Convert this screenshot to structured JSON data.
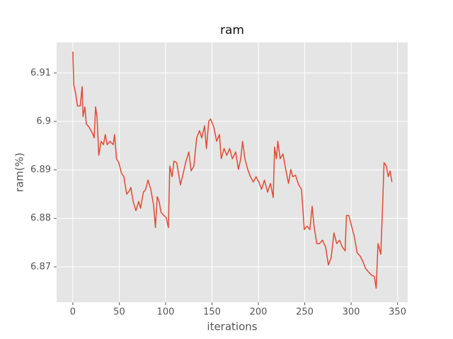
{
  "chart_data": {
    "type": "line",
    "title": "ram",
    "xlabel": "iterations",
    "ylabel": "ram(%)",
    "color": "#e24a33",
    "grid": true,
    "xlim": [
      -17.5,
      361
    ],
    "ylim": [
      6.8627,
      6.9163
    ],
    "xticks": [
      0,
      50,
      100,
      150,
      200,
      250,
      300,
      350
    ],
    "yticks": [
      6.87,
      6.88,
      6.89,
      6.9,
      6.91
    ],
    "x": [
      0,
      1,
      3,
      5,
      8,
      10,
      11,
      13,
      14.5,
      17.5,
      21,
      23,
      24.5,
      26,
      28,
      30.5,
      33,
      35,
      37,
      40,
      43.5,
      45,
      47,
      49.5,
      52.5,
      55,
      58,
      61,
      62.5,
      65,
      68,
      71,
      73,
      76,
      78.5,
      81,
      84,
      87,
      89,
      91,
      93,
      95,
      98,
      100.5,
      103,
      104.5,
      107,
      109,
      112,
      116,
      119,
      122,
      125,
      127.5,
      130.5,
      133.5,
      136.5,
      139,
      142,
      144,
      146.5,
      148.5,
      152,
      155,
      158,
      160,
      163,
      166,
      169,
      172,
      175.5,
      178.5,
      181,
      183,
      185.5,
      188.5,
      191.5,
      194.5,
      197.5,
      200.5,
      203.5,
      206.5,
      210,
      213,
      216,
      217.5,
      219.5,
      221,
      223.5,
      226.5,
      229.5,
      232.5,
      235,
      237,
      240,
      243.5,
      246.5,
      249.5,
      252.5,
      255.5,
      258,
      260,
      263,
      266,
      269,
      272.5,
      275.5,
      278.5,
      281.5,
      284.5,
      287.5,
      290.5,
      293.5,
      295,
      297.5,
      300.5,
      303.5,
      306.5,
      309.5,
      312.5,
      315.5,
      318.5,
      322,
      325,
      327,
      329,
      332,
      334,
      335.5,
      338,
      340,
      342,
      344
    ],
    "values": [
      6.9144,
      6.9075,
      6.9058,
      6.9032,
      6.9032,
      6.9072,
      6.901,
      6.903,
      6.8995,
      6.8988,
      6.8976,
      6.8966,
      6.903,
      6.901,
      6.893,
      6.8959,
      6.8952,
      6.8973,
      6.8952,
      6.8959,
      6.8952,
      6.8973,
      6.8923,
      6.8915,
      6.8893,
      6.8886,
      6.885,
      6.8857,
      6.8864,
      6.8835,
      6.8816,
      6.8835,
      6.8821,
      6.8854,
      6.886,
      6.8879,
      6.886,
      6.8828,
      6.8781,
      6.8845,
      6.8835,
      6.8813,
      6.8806,
      6.8802,
      6.8781,
      6.8908,
      6.8886,
      6.8918,
      6.8915,
      6.8869,
      6.8893,
      6.8918,
      6.8937,
      6.8898,
      6.8908,
      6.8966,
      6.8981,
      6.8966,
      6.8991,
      6.8944,
      6.9,
      6.9005,
      6.8988,
      6.8959,
      6.8973,
      6.8923,
      6.8944,
      6.893,
      6.8944,
      6.8923,
      6.8937,
      6.8901,
      6.8923,
      6.8959,
      6.8923,
      6.8901,
      6.8886,
      6.8875,
      6.8886,
      6.8875,
      6.886,
      6.8879,
      6.8854,
      6.8872,
      6.8843,
      6.8947,
      6.8923,
      6.8959,
      6.8923,
      6.8933,
      6.8901,
      6.8872,
      6.8901,
      6.8886,
      6.8889,
      6.8869,
      6.886,
      6.8777,
      6.8784,
      6.8777,
      6.8825,
      6.8784,
      6.8748,
      6.8748,
      6.8755,
      6.8741,
      6.8704,
      6.8719,
      6.877,
      6.8748,
      6.8755,
      6.8741,
      6.8733,
      6.8806,
      6.8806,
      6.8784,
      6.8762,
      6.8729,
      6.8723,
      6.8712,
      6.8697,
      6.869,
      6.8683,
      6.868,
      6.8656,
      6.8748,
      6.8726,
      6.8828,
      6.8915,
      6.8908,
      6.8886,
      6.8898,
      6.8875
    ]
  }
}
